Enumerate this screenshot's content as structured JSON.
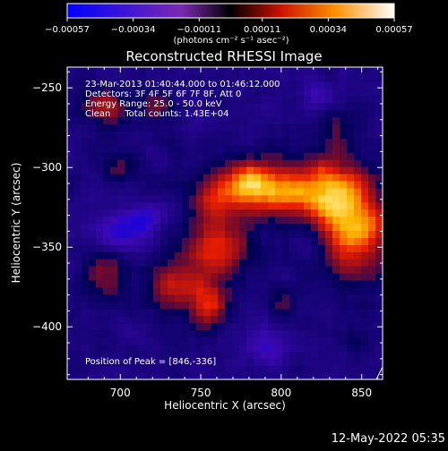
{
  "chart_data": {
    "type": "heatmap",
    "title": "Reconstructed RHESSI Image",
    "xlabel": "Heliocentric X (arcsec)",
    "ylabel": "Heliocentric Y (arcsec)",
    "xlim": [
      667,
      863
    ],
    "ylim": [
      -433,
      -237
    ],
    "x_ticks": [
      700,
      750,
      800,
      850
    ],
    "y_ticks": [
      -250,
      -300,
      -350,
      -400
    ],
    "colorbar": {
      "label": "(photons cm⁻² s⁻¹ asec⁻²)",
      "ticks": [
        "-0.00057",
        "-0.00034",
        "-0.00011",
        "0.00011",
        "0.00034",
        "0.00057"
      ],
      "range": [
        -0.00057,
        0.00057
      ]
    },
    "annotations": [
      "23-Mar-2013 01:40:44.000 to 01:46:12.000",
      "Detectors: 3F 4F 5F 6F 7F 8F, Att 0",
      "Energy Range: 25.0 - 50.0 keV",
      "Clean     Total counts: 1.43E+04"
    ],
    "peak_text": "Position of Peak = [846,-336]",
    "peak_position": [
      846,
      -336
    ],
    "blobs": [
      {
        "x": 846,
        "y": -336,
        "sx": 14,
        "sy": 22,
        "amp": 0.00057
      },
      {
        "x": 828,
        "y": -315,
        "sx": 12,
        "sy": 14,
        "amp": 0.00045
      },
      {
        "x": 800,
        "y": -315,
        "sx": 14,
        "sy": 12,
        "amp": 0.0005
      },
      {
        "x": 780,
        "y": -308,
        "sx": 10,
        "sy": 10,
        "amp": 0.00042
      },
      {
        "x": 760,
        "y": -318,
        "sx": 12,
        "sy": 12,
        "amp": 0.0004
      },
      {
        "x": 760,
        "y": -352,
        "sx": 15,
        "sy": 12,
        "amp": 0.00038
      },
      {
        "x": 735,
        "y": -375,
        "sx": 14,
        "sy": 12,
        "amp": 0.00033
      },
      {
        "x": 755,
        "y": -388,
        "sx": 8,
        "sy": 10,
        "amp": 0.00035
      },
      {
        "x": 690,
        "y": -365,
        "sx": 10,
        "sy": 12,
        "amp": 0.00025
      },
      {
        "x": 690,
        "y": -262,
        "sx": 10,
        "sy": 8,
        "amp": 0.0003
      },
      {
        "x": 722,
        "y": -262,
        "sx": 8,
        "sy": 6,
        "amp": 0.00024
      },
      {
        "x": 700,
        "y": -300,
        "sx": 8,
        "sy": 8,
        "amp": 0.00018
      },
      {
        "x": 833,
        "y": -278,
        "sx": 8,
        "sy": 8,
        "amp": 0.00022
      },
      {
        "x": 800,
        "y": -385,
        "sx": 6,
        "sy": 8,
        "amp": 0.00018
      },
      {
        "x": 845,
        "y": -410,
        "sx": 6,
        "sy": 6,
        "amp": 0.00014
      }
    ],
    "negative_blobs": [
      {
        "x": 700,
        "y": -340,
        "sx": 12,
        "sy": 10,
        "amp": 0.00028
      },
      {
        "x": 718,
        "y": -330,
        "sx": 8,
        "sy": 6,
        "amp": 0.00022
      },
      {
        "x": 790,
        "y": -412,
        "sx": 10,
        "sy": 8,
        "amp": 0.00018
      },
      {
        "x": 820,
        "y": -255,
        "sx": 8,
        "sy": 8,
        "amp": 0.00014
      }
    ]
  },
  "footer": {
    "timestamp": "12-May-2022 05:35"
  }
}
